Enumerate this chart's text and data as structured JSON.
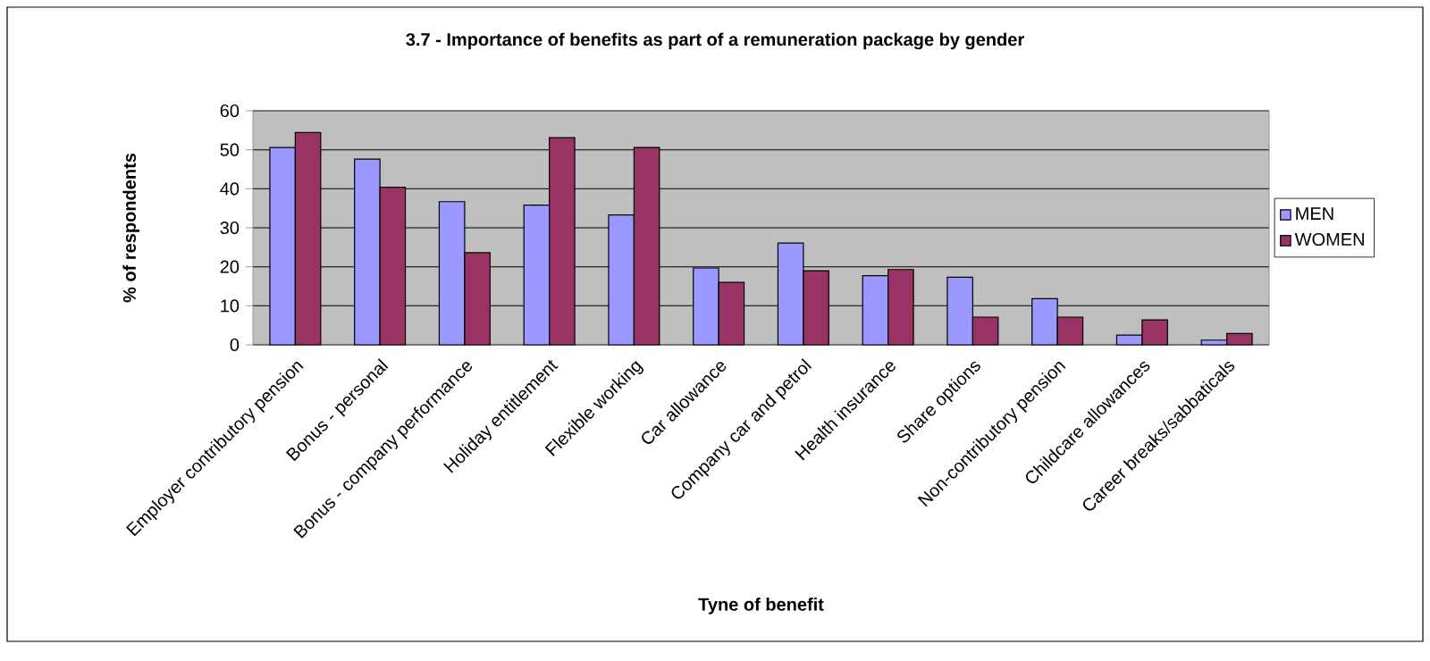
{
  "chart_data": {
    "type": "bar",
    "title": "3.7 - Importance of benefits as part of a remuneration package by gender",
    "xlabel": "Tyne of benefit",
    "ylabel": "% of respondents",
    "categories": [
      "Employer contributory pension",
      "Bonus - personal",
      "Bonus - company performance",
      "Holiday entitlement",
      "Flexible working",
      "Car allowance",
      "Company car and petrol",
      "Health insurance",
      "Share options",
      "Non-contributory pension",
      "Childcare allowances",
      "Career breaks/sabbaticals"
    ],
    "series": [
      {
        "name": "MEN",
        "color": "#9999ff",
        "values": [
          50.6,
          47.6,
          36.7,
          35.8,
          33.3,
          19.7,
          26.1,
          17.7,
          17.3,
          11.8,
          2.5,
          1.2
        ]
      },
      {
        "name": "WOMEN",
        "color": "#993366",
        "values": [
          54.4,
          40.4,
          23.6,
          53.1,
          50.6,
          16.0,
          19.0,
          19.3,
          7.1,
          7.1,
          6.4,
          2.9
        ]
      }
    ],
    "ylim": [
      0,
      60
    ],
    "yticks": [
      0,
      10,
      20,
      30,
      40,
      50,
      60
    ],
    "grid": "y",
    "legend": "right"
  }
}
